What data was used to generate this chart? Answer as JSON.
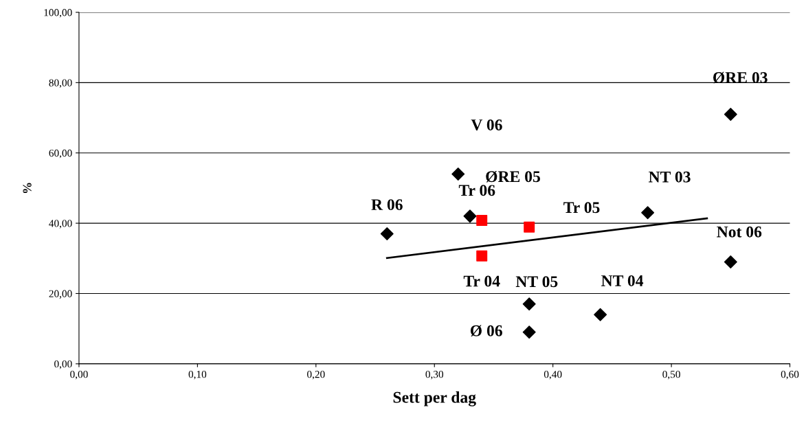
{
  "chart_data": {
    "type": "scatter",
    "xlabel": "Sett per dag",
    "ylabel": "%",
    "xlim": [
      0,
      0.6
    ],
    "ylim": [
      0,
      100
    ],
    "xticks": [
      {
        "value": 0,
        "label": "0,00"
      },
      {
        "value": 0.1,
        "label": "0,10"
      },
      {
        "value": 0.2,
        "label": "0,20"
      },
      {
        "value": 0.3,
        "label": "0,30"
      },
      {
        "value": 0.4,
        "label": "0,40"
      },
      {
        "value": 0.5,
        "label": "0,50"
      },
      {
        "value": 0.6,
        "label": "0,60"
      }
    ],
    "yticks": [
      {
        "value": 0,
        "label": "0,00"
      },
      {
        "value": 20,
        "label": "20,00"
      },
      {
        "value": 40,
        "label": "40,00"
      },
      {
        "value": 60,
        "label": "60,00"
      },
      {
        "value": 80,
        "label": "80,00"
      },
      {
        "value": 100,
        "label": "100,00"
      }
    ],
    "grid": "y",
    "legend": false,
    "series": [
      {
        "marker": "diamond",
        "color": "#000000",
        "x": [
          0.26,
          0.32,
          0.33,
          0.48,
          0.55,
          0.55,
          0.38,
          0.38,
          0.44
        ],
        "values": [
          37,
          54,
          42,
          43,
          29,
          71,
          17,
          9,
          14
        ]
      },
      {
        "marker": "square",
        "color": "#ff0000",
        "x": [
          0.34,
          0.38,
          0.34
        ],
        "values": [
          40.8,
          38.9,
          30.7
        ]
      },
      {
        "type": "line",
        "marker": "none",
        "color": "#000000",
        "x": [
          0.26,
          0.53
        ],
        "values": [
          30.1,
          41.4
        ]
      }
    ],
    "annotations": [
      {
        "text": "R 06",
        "x": 0.26,
        "y": 37
      },
      {
        "text": "V 06",
        "x": 0.32,
        "y": 54
      },
      {
        "text": "ØRE 05",
        "x": 0.33,
        "y": 42
      },
      {
        "text": "NT 03",
        "x": 0.48,
        "y": 43
      },
      {
        "text": "Not 06",
        "x": 0.55,
        "y": 29
      },
      {
        "text": "ØRE 03",
        "x": 0.55,
        "y": 71
      },
      {
        "text": "NT 05",
        "x": 0.38,
        "y": 17
      },
      {
        "text": "Ø 06",
        "x": 0.38,
        "y": 9
      },
      {
        "text": "NT 04",
        "x": 0.44,
        "y": 14
      },
      {
        "text": "Tr 06",
        "x": 0.34,
        "y": 40.8
      },
      {
        "text": "Tr 05",
        "x": 0.38,
        "y": 38.9
      },
      {
        "text": "Tr 04",
        "x": 0.34,
        "y": 30.7
      }
    ]
  }
}
